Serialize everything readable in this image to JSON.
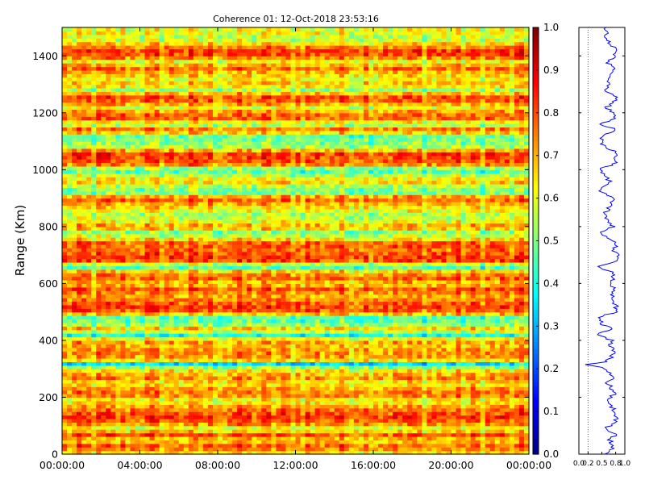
{
  "chart_data": [
    {
      "type": "heatmap",
      "title": "Coherence 01: 12-Oct-2018 23:53:16",
      "ylabel": "Range (Km)",
      "xlabel": "",
      "x_ticks": [
        "00:00:00",
        "04:00:00",
        "08:00:00",
        "12:00:00",
        "16:00:00",
        "20:00:00",
        "00:00:00"
      ],
      "x_range_hours": [
        0,
        24
      ],
      "y_ticks": [
        0,
        200,
        400,
        600,
        800,
        1000,
        1200,
        1400
      ],
      "ylim": [
        0,
        1500
      ],
      "colormap": "jet",
      "colorbar": {
        "ticks": [
          "0.0",
          "0.1",
          "0.2",
          "0.3",
          "0.4",
          "0.5",
          "0.6",
          "0.7",
          "0.8",
          "0.9",
          "1.0"
        ],
        "range": [
          0,
          1
        ]
      },
      "range_profile": [
        {
          "r": 0,
          "v": 0.6
        },
        {
          "r": 15,
          "v": 0.72
        },
        {
          "r": 30,
          "v": 0.78
        },
        {
          "r": 50,
          "v": 0.65
        },
        {
          "r": 70,
          "v": 0.8
        },
        {
          "r": 90,
          "v": 0.58
        },
        {
          "r": 110,
          "v": 0.76
        },
        {
          "r": 130,
          "v": 0.82
        },
        {
          "r": 150,
          "v": 0.79
        },
        {
          "r": 170,
          "v": 0.7
        },
        {
          "r": 190,
          "v": 0.6
        },
        {
          "r": 210,
          "v": 0.77
        },
        {
          "r": 230,
          "v": 0.72
        },
        {
          "r": 250,
          "v": 0.62
        },
        {
          "r": 270,
          "v": 0.74
        },
        {
          "r": 290,
          "v": 0.66
        },
        {
          "r": 305,
          "v": 0.55
        },
        {
          "r": 315,
          "v": 0.18
        },
        {
          "r": 325,
          "v": 0.6
        },
        {
          "r": 340,
          "v": 0.7
        },
        {
          "r": 360,
          "v": 0.75
        },
        {
          "r": 380,
          "v": 0.68
        },
        {
          "r": 400,
          "v": 0.72
        },
        {
          "r": 420,
          "v": 0.38
        },
        {
          "r": 440,
          "v": 0.7
        },
        {
          "r": 460,
          "v": 0.48
        },
        {
          "r": 480,
          "v": 0.45
        },
        {
          "r": 500,
          "v": 0.78
        },
        {
          "r": 520,
          "v": 0.82
        },
        {
          "r": 540,
          "v": 0.76
        },
        {
          "r": 560,
          "v": 0.7
        },
        {
          "r": 580,
          "v": 0.8
        },
        {
          "r": 600,
          "v": 0.65
        },
        {
          "r": 620,
          "v": 0.78
        },
        {
          "r": 640,
          "v": 0.72
        },
        {
          "r": 660,
          "v": 0.4
        },
        {
          "r": 680,
          "v": 0.8
        },
        {
          "r": 700,
          "v": 0.82
        },
        {
          "r": 720,
          "v": 0.76
        },
        {
          "r": 740,
          "v": 0.8
        },
        {
          "r": 760,
          "v": 0.62
        },
        {
          "r": 780,
          "v": 0.5
        },
        {
          "r": 800,
          "v": 0.74
        },
        {
          "r": 820,
          "v": 0.6
        },
        {
          "r": 840,
          "v": 0.55
        },
        {
          "r": 860,
          "v": 0.62
        },
        {
          "r": 880,
          "v": 0.7
        },
        {
          "r": 900,
          "v": 0.8
        },
        {
          "r": 920,
          "v": 0.48
        },
        {
          "r": 940,
          "v": 0.52
        },
        {
          "r": 960,
          "v": 0.68
        },
        {
          "r": 980,
          "v": 0.55
        },
        {
          "r": 1000,
          "v": 0.42
        },
        {
          "r": 1020,
          "v": 0.76
        },
        {
          "r": 1040,
          "v": 0.8
        },
        {
          "r": 1060,
          "v": 0.82
        },
        {
          "r": 1080,
          "v": 0.55
        },
        {
          "r": 1100,
          "v": 0.5
        },
        {
          "r": 1120,
          "v": 0.48
        },
        {
          "r": 1140,
          "v": 0.8
        },
        {
          "r": 1160,
          "v": 0.5
        },
        {
          "r": 1180,
          "v": 0.78
        },
        {
          "r": 1200,
          "v": 0.75
        },
        {
          "r": 1220,
          "v": 0.6
        },
        {
          "r": 1240,
          "v": 0.78
        },
        {
          "r": 1260,
          "v": 0.8
        },
        {
          "r": 1280,
          "v": 0.52
        },
        {
          "r": 1300,
          "v": 0.7
        },
        {
          "r": 1320,
          "v": 0.62
        },
        {
          "r": 1340,
          "v": 0.68
        },
        {
          "r": 1360,
          "v": 0.78
        },
        {
          "r": 1380,
          "v": 0.6
        },
        {
          "r": 1400,
          "v": 0.8
        },
        {
          "r": 1420,
          "v": 0.82
        },
        {
          "r": 1440,
          "v": 0.7
        },
        {
          "r": 1460,
          "v": 0.55
        },
        {
          "r": 1480,
          "v": 0.62
        },
        {
          "r": 1500,
          "v": 0.6
        }
      ]
    },
    {
      "type": "line",
      "title": "",
      "xlabel": "",
      "ylabel": "",
      "xlim": [
        0,
        1
      ],
      "ylim": [
        0,
        1500
      ],
      "x_ticks": [
        "0.0",
        "0.2",
        "0.5",
        "0.8",
        "1.0"
      ],
      "series_color": "#0000ff",
      "uses_range_profile": true
    }
  ]
}
